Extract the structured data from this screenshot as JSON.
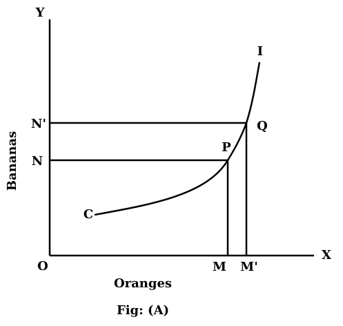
{
  "axes": {
    "y_label": "Y",
    "x_label": "X",
    "origin": "O",
    "y_title": "Bananas",
    "x_title": "Oranges"
  },
  "points": {
    "m": "M",
    "m_prime": "M'",
    "n": "N",
    "n_prime": "N'",
    "p": "P",
    "q": "Q",
    "curve_start": "C",
    "curve_end": "I"
  },
  "caption": "Fig: (A)"
}
